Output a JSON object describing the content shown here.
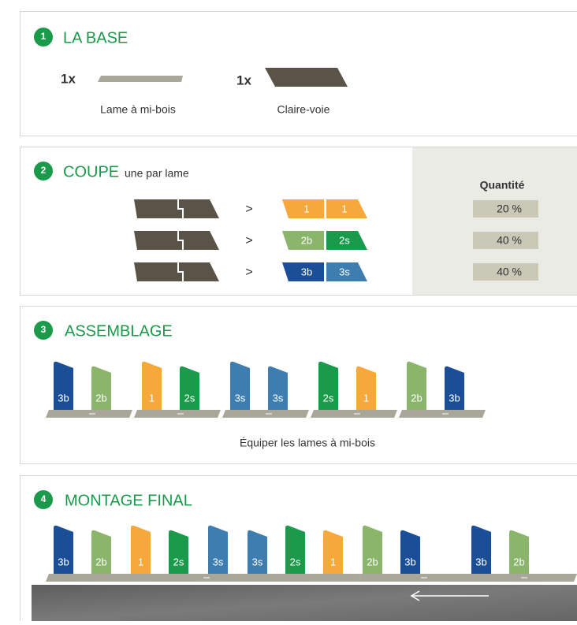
{
  "section1": {
    "number": "1",
    "title": "LA BASE",
    "items": [
      {
        "count": "1x",
        "label": "Lame à mi-bois"
      },
      {
        "count": "1x",
        "label": "Claire-voie"
      }
    ]
  },
  "section2": {
    "number": "2",
    "title": "COUPE",
    "subtitle": "une par lame",
    "arrow": ">",
    "quantity_header": "Quantité",
    "rows": [
      {
        "pieces": [
          {
            "label": "1",
            "color": "#f6a83a"
          },
          {
            "label": "1",
            "color": "#f6a83a"
          }
        ],
        "quantity": "20 %"
      },
      {
        "pieces": [
          {
            "label": "2b",
            "color": "#8ab56a"
          },
          {
            "label": "2s",
            "color": "#1a9a4a"
          }
        ],
        "quantity": "40 %"
      },
      {
        "pieces": [
          {
            "label": "3b",
            "color": "#1a4e96"
          },
          {
            "label": "3s",
            "color": "#3d7db0"
          }
        ],
        "quantity": "40 %"
      }
    ]
  },
  "section3": {
    "number": "3",
    "title": "ASSEMBLAGE",
    "caption": "Équiper les lames à mi-bois",
    "groups": [
      [
        {
          "label": "3b",
          "color": "#1a4e96"
        },
        {
          "label": "2b",
          "color": "#8ab56a"
        }
      ],
      [
        {
          "label": "1",
          "color": "#f6a83a"
        },
        {
          "label": "2s",
          "color": "#1a9a4a"
        }
      ],
      [
        {
          "label": "3s",
          "color": "#3d7db0"
        },
        {
          "label": "3s",
          "color": "#3d7db0"
        }
      ],
      [
        {
          "label": "2s",
          "color": "#1a9a4a"
        },
        {
          "label": "1",
          "color": "#f6a83a"
        }
      ],
      [
        {
          "label": "2b",
          "color": "#8ab56a"
        },
        {
          "label": "3b",
          "color": "#1a4e96"
        }
      ]
    ]
  },
  "section4": {
    "number": "4",
    "title": "MONTAGE FINAL",
    "pieces": [
      {
        "label": "3b",
        "color": "#1a4e96"
      },
      {
        "label": "2b",
        "color": "#8ab56a"
      },
      {
        "label": "1",
        "color": "#f6a83a"
      },
      {
        "label": "2s",
        "color": "#1a9a4a"
      },
      {
        "label": "3s",
        "color": "#3d7db0"
      },
      {
        "label": "3s",
        "color": "#3d7db0"
      },
      {
        "label": "2s",
        "color": "#1a9a4a"
      },
      {
        "label": "1",
        "color": "#f6a83a"
      },
      {
        "label": "2b",
        "color": "#8ab56a"
      },
      {
        "label": "3b",
        "color": "#1a4e96"
      },
      {
        "label": "3b",
        "color": "#1a4e96"
      },
      {
        "label": "2b",
        "color": "#8ab56a"
      }
    ]
  }
}
